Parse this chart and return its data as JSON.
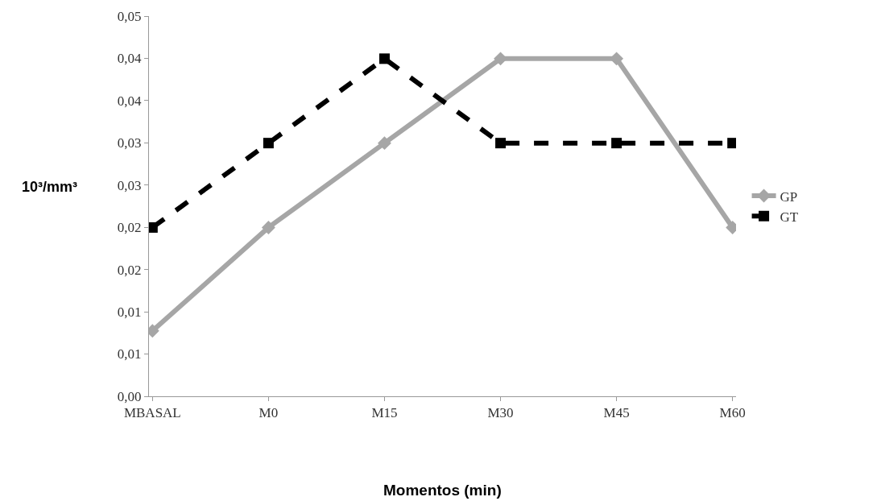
{
  "chart_data": {
    "type": "line",
    "xlabel": "Momentos (min)",
    "ylabel": "10³/mm³",
    "categories": [
      "MBASAL",
      "M0",
      "M15",
      "M30",
      "M45",
      "M60"
    ],
    "series": [
      {
        "name": "GP",
        "color": "#a6a6a6",
        "marker": "diamond",
        "line_style": "solid",
        "values": [
          0.0086,
          0.0222,
          0.0333,
          0.0444,
          0.0444,
          0.0222
        ]
      },
      {
        "name": "GT",
        "color": "#000000",
        "marker": "square",
        "line_style": "dashed",
        "values": [
          0.0222,
          0.0333,
          0.0444,
          0.0333,
          0.0333,
          0.0333
        ]
      }
    ],
    "ylim": [
      0,
      0.05
    ],
    "yticks": [
      {
        "value": 0,
        "label": "0,00"
      },
      {
        "value": 0.00556,
        "label": "0,01"
      },
      {
        "value": 0.01111,
        "label": "0,01"
      },
      {
        "value": 0.01667,
        "label": "0,02"
      },
      {
        "value": 0.02222,
        "label": "0,02"
      },
      {
        "value": 0.02778,
        "label": "0,03"
      },
      {
        "value": 0.03333,
        "label": "0,03"
      },
      {
        "value": 0.03889,
        "label": "0,04"
      },
      {
        "value": 0.04444,
        "label": "0,04"
      },
      {
        "value": 0.05,
        "label": "0,05"
      }
    ],
    "legend": "right"
  }
}
